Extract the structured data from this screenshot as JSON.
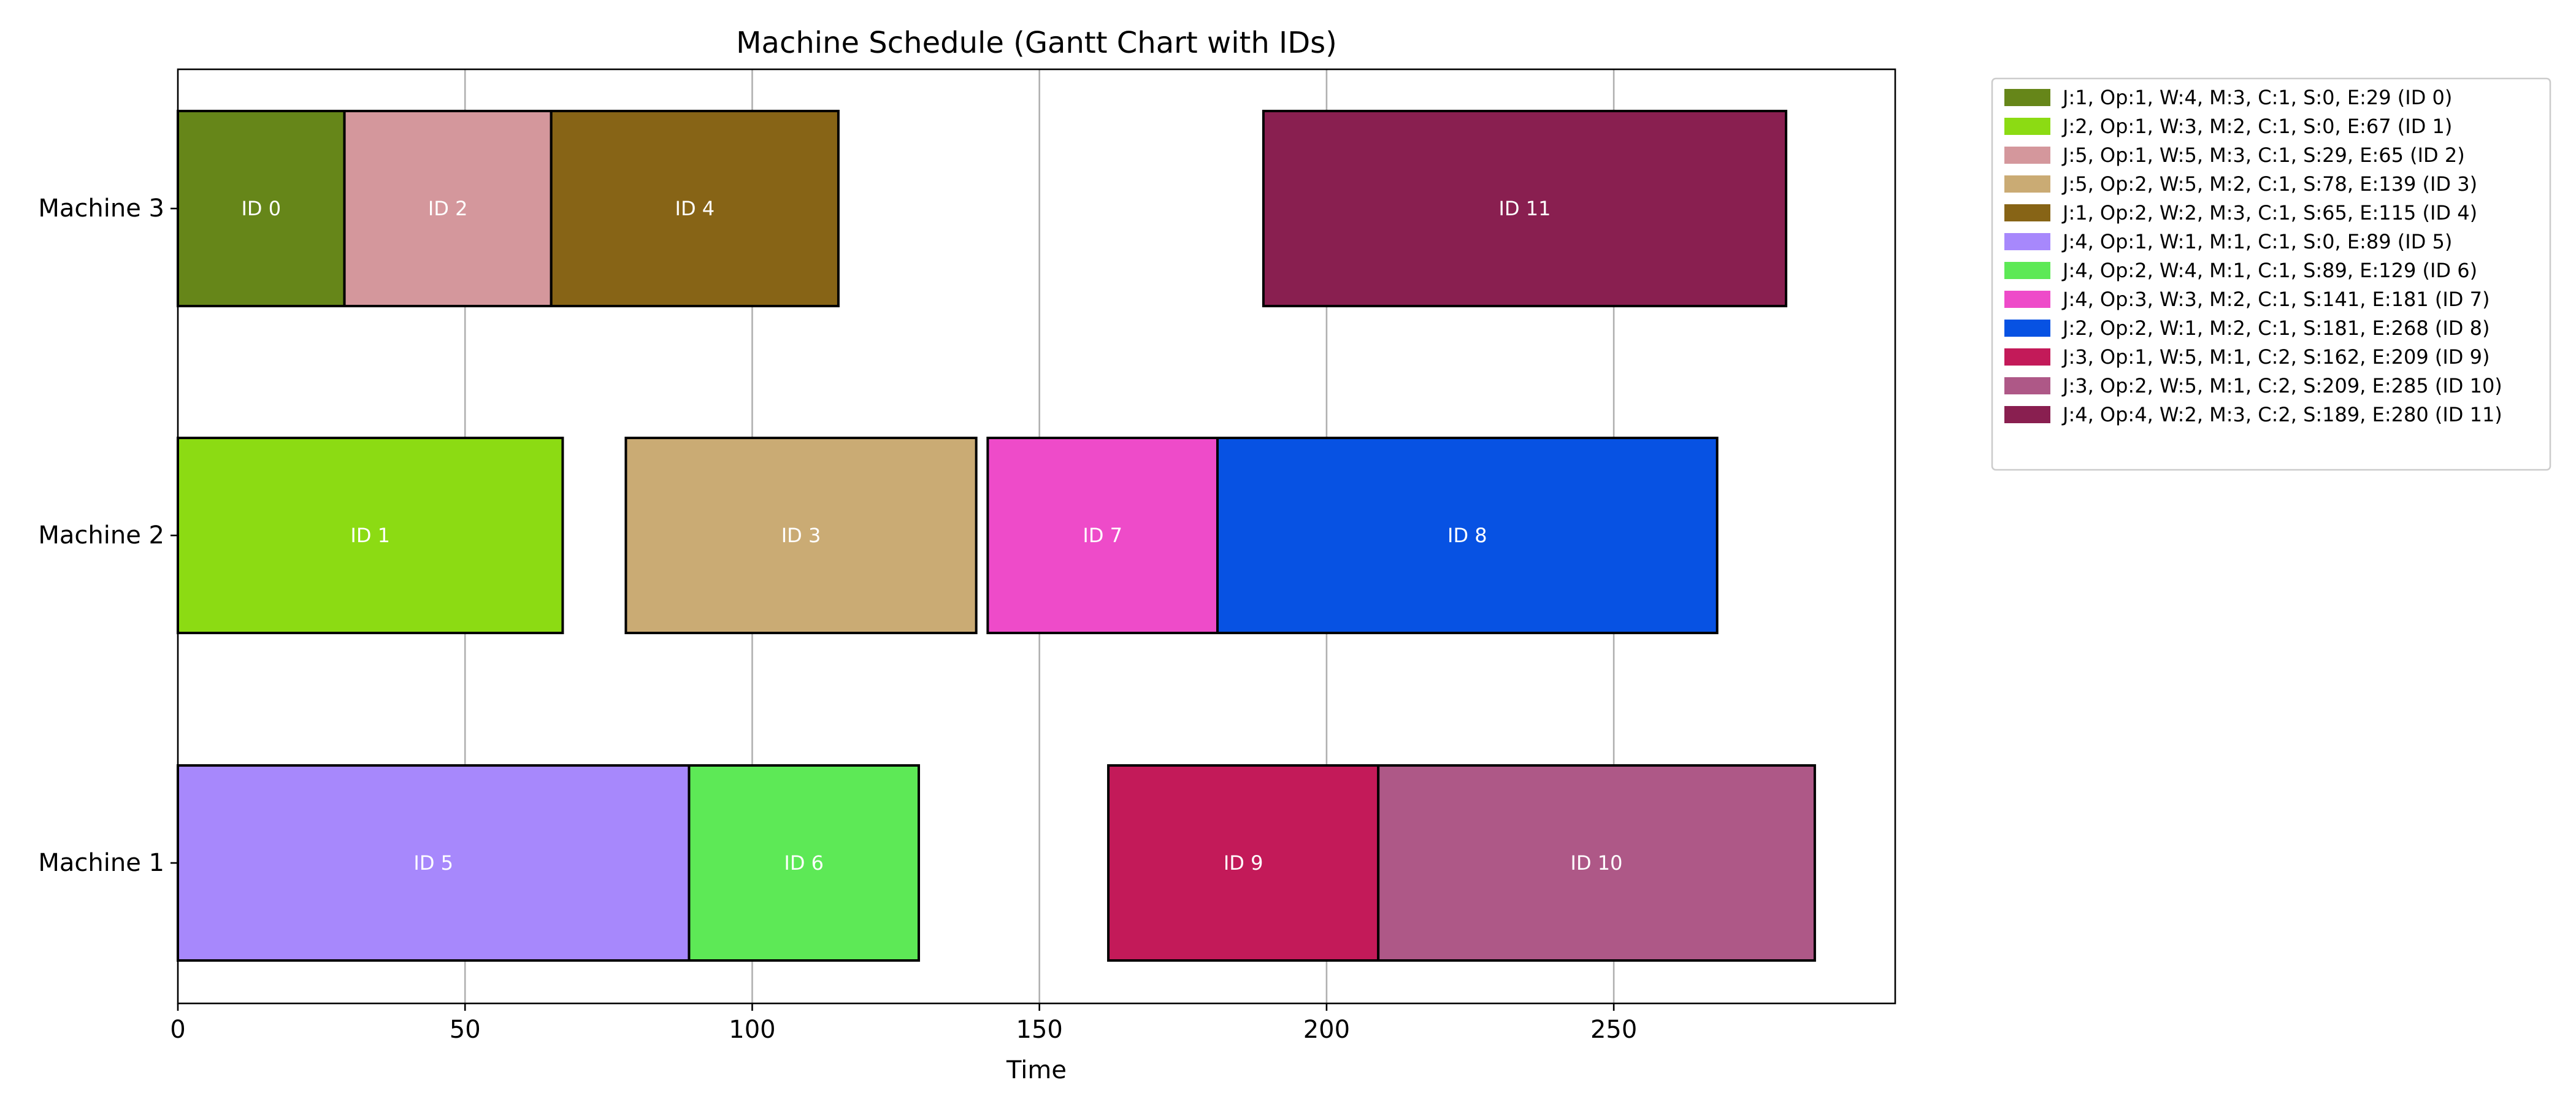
{
  "chart_data": {
    "type": "gantt",
    "title": "Machine Schedule (Gantt Chart with IDs)",
    "xlabel": "Time",
    "ylabel": "",
    "xlim": [
      0,
      299
    ],
    "x_ticks": [
      0,
      50,
      100,
      150,
      200,
      250
    ],
    "grid": "vertical",
    "legend_placement": "outside-top-right",
    "machines": [
      "Machine 3",
      "Machine 2",
      "Machine 1"
    ],
    "tasks": [
      {
        "id_label": "ID 0",
        "machine": "Machine 3",
        "start": 0,
        "end": 29,
        "color": "#668619",
        "legend": "J:1, Op:1, W:4, M:3, C:1, S:0, E:29 (ID 0)"
      },
      {
        "id_label": "ID 1",
        "machine": "Machine 2",
        "start": 0,
        "end": 67,
        "color": "#8cdb13",
        "legend": "J:2, Op:1, W:3, M:2, C:1, S:0, E:67 (ID 1)"
      },
      {
        "id_label": "ID 2",
        "machine": "Machine 3",
        "start": 29,
        "end": 65,
        "color": "#d4979c",
        "legend": "J:5, Op:1, W:5, M:3, C:1, S:29, E:65 (ID 2)"
      },
      {
        "id_label": "ID 3",
        "machine": "Machine 2",
        "start": 78,
        "end": 139,
        "color": "#caab74",
        "legend": "J:5, Op:2, W:5, M:2, C:1, S:78, E:139 (ID 3)"
      },
      {
        "id_label": "ID 4",
        "machine": "Machine 3",
        "start": 65,
        "end": 115,
        "color": "#876416",
        "legend": "J:1, Op:2, W:2, M:3, C:1, S:65, E:115 (ID 4)"
      },
      {
        "id_label": "ID 5",
        "machine": "Machine 1",
        "start": 0,
        "end": 89,
        "color": "#a788fc",
        "legend": "J:4, Op:1, W:1, M:1, C:1, S:0, E:89 (ID 5)"
      },
      {
        "id_label": "ID 6",
        "machine": "Machine 1",
        "start": 89,
        "end": 129,
        "color": "#5de956",
        "legend": "J:4, Op:2, W:4, M:1, C:1, S:89, E:129 (ID 6)"
      },
      {
        "id_label": "ID 7",
        "machine": "Machine 2",
        "start": 141,
        "end": 181,
        "color": "#ee4bc9",
        "legend": "J:4, Op:3, W:3, M:2, C:1, S:141, E:181 (ID 7)"
      },
      {
        "id_label": "ID 8",
        "machine": "Machine 2",
        "start": 181,
        "end": 268,
        "color": "#0752e3",
        "legend": "J:2, Op:2, W:1, M:2, C:1, S:181, E:268 (ID 8)"
      },
      {
        "id_label": "ID 9",
        "machine": "Machine 1",
        "start": 162,
        "end": 209,
        "color": "#c31a59",
        "legend": "J:3, Op:1, W:5, M:1, C:2, S:162, E:209 (ID 9)"
      },
      {
        "id_label": "ID 10",
        "machine": "Machine 1",
        "start": 209,
        "end": 285,
        "color": "#ae5887",
        "legend": "J:3, Op:2, W:5, M:1, C:2, S:209, E:285 (ID 10)"
      },
      {
        "id_label": "ID 11",
        "machine": "Machine 3",
        "start": 189,
        "end": 280,
        "color": "#891f50",
        "legend": "J:4, Op:4, W:2, M:3, C:2, S:189, E:280 (ID 11)"
      }
    ]
  }
}
